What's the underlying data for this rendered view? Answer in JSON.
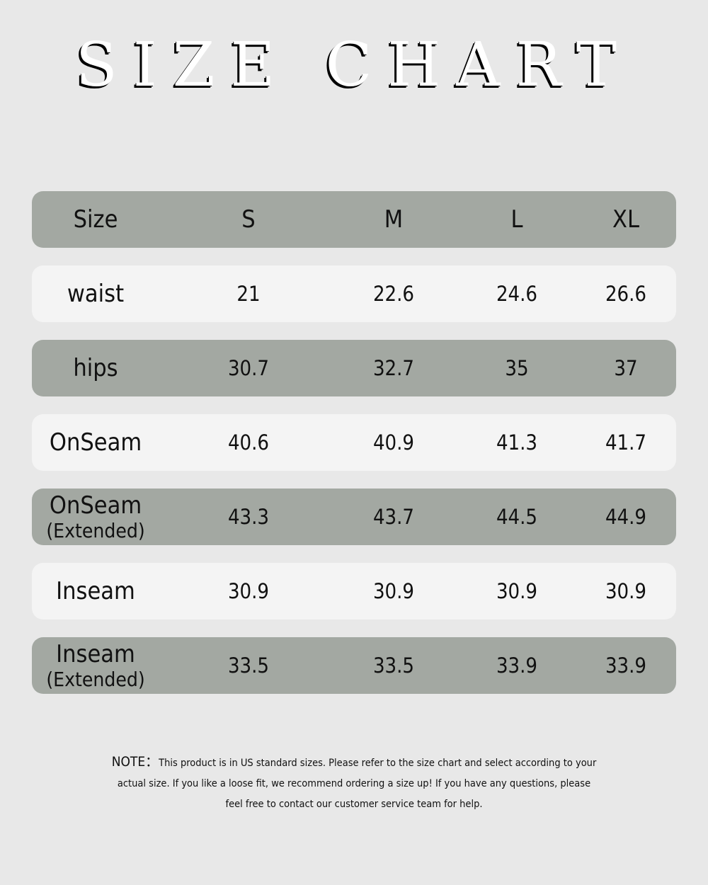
{
  "title": "SIZE CHART",
  "table": {
    "headers": [
      "Size",
      "S",
      "M",
      "L",
      "XL"
    ],
    "rows": [
      {
        "label": "waist",
        "sub": "",
        "values": [
          "21",
          "22.6",
          "24.6",
          "26.6"
        ]
      },
      {
        "label": "hips",
        "sub": "",
        "values": [
          "30.7",
          "32.7",
          "35",
          "37"
        ]
      },
      {
        "label": "OnSeam",
        "sub": "",
        "values": [
          "40.6",
          "40.9",
          "41.3",
          "41.7"
        ]
      },
      {
        "label": "OnSeam",
        "sub": "(Extended)",
        "values": [
          "43.3",
          "43.7",
          "44.5",
          "44.9"
        ]
      },
      {
        "label": "Inseam",
        "sub": "",
        "values": [
          "30.9",
          "30.9",
          "30.9",
          "30.9"
        ]
      },
      {
        "label": "Inseam",
        "sub": "(Extended)",
        "values": [
          "33.5",
          "33.5",
          "33.9",
          "33.9"
        ]
      }
    ]
  },
  "note": {
    "prefix": "NOTE：",
    "line1": "This product is in US standard sizes. Please refer to the size chart and select according to your",
    "line2": "actual size. If you like a loose fit, we  recommend ordering a size up! If you have any questions, please",
    "line3": "feel free to contact our customer service team for help."
  },
  "colors": {
    "background": "#e8e8e8",
    "dark_row": "#a3a8a2",
    "light_row": "#f4f4f4"
  }
}
